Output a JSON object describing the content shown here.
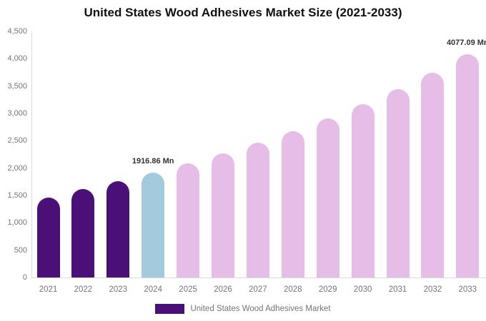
{
  "title": "United States Wood Adhesives Market Size (2021-2033)",
  "chart_data": {
    "type": "bar",
    "title": "United States Wood Adhesives Market Size (2021-2033)",
    "xlabel": "",
    "ylabel": "",
    "unit": "Mn",
    "ylim": [
      0,
      4500
    ],
    "y_ticks": [
      "4,500",
      "4,000",
      "3,500",
      "3,000",
      "2,500",
      "2,000",
      "1,500",
      "1,000",
      "500",
      "0"
    ],
    "grid": "off",
    "categories": [
      "2021",
      "2022",
      "2023",
      "2024",
      "2025",
      "2026",
      "2027",
      "2028",
      "2029",
      "2030",
      "2031",
      "2032",
      "2033"
    ],
    "values": [
      1465,
      1620,
      1755,
      1916.86,
      2085,
      2265,
      2465,
      2680,
      2915,
      3170,
      3448,
      3750,
      4077.09
    ],
    "bar_colors": [
      "#4A1078",
      "#4A1078",
      "#4A1078",
      "#A3CBDD",
      "#E5BDE7",
      "#E5BDE7",
      "#E5BDE7",
      "#E5BDE7",
      "#E5BDE7",
      "#E5BDE7",
      "#E5BDE7",
      "#E5BDE7",
      "#E5BDE7"
    ],
    "data_labels": [
      {
        "index": 3,
        "text": "1916.86 Mn"
      },
      {
        "index": 12,
        "text": "4077.09 Mn"
      }
    ],
    "legend": {
      "position": "bottom",
      "entries": [
        {
          "label": "United States Wood Adhesives Market",
          "color": "#4A1078"
        }
      ]
    }
  },
  "colors": {
    "historical_bar": "#4A1078",
    "highlight_bar": "#A3CBDD",
    "forecast_bar": "#E5BDE7",
    "axis_line": "#d9d9d9",
    "tick_text": "#757575",
    "data_label_text": "#333333",
    "title_text": "#111111"
  }
}
